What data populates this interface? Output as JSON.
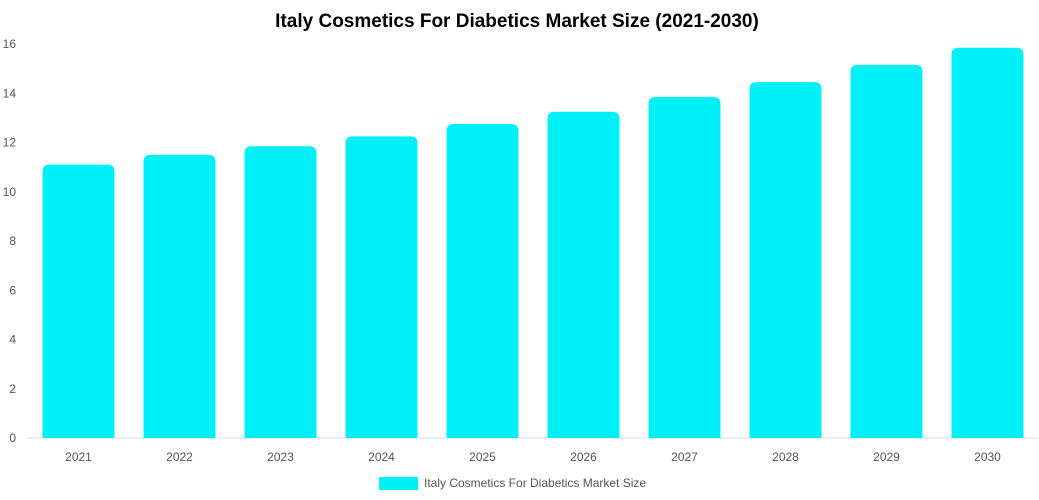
{
  "chart_data": {
    "type": "bar",
    "title": "Italy Cosmetics For Diabetics Market Size (2021-2030)",
    "xlabel": "",
    "ylabel": "",
    "categories": [
      "2021",
      "2022",
      "2023",
      "2024",
      "2025",
      "2026",
      "2027",
      "2028",
      "2029",
      "2030"
    ],
    "series": [
      {
        "name": "Italy Cosmetics For Diabetics Market Size",
        "values": [
          11.1,
          11.5,
          11.85,
          12.25,
          12.75,
          13.25,
          13.85,
          14.45,
          15.15,
          15.85
        ],
        "color": "#00f0f8"
      }
    ],
    "ylim": [
      0,
      16
    ],
    "yticks": [
      0,
      2,
      4,
      6,
      8,
      10,
      12,
      14,
      16
    ],
    "grid": false,
    "legend_position": "bottom"
  }
}
